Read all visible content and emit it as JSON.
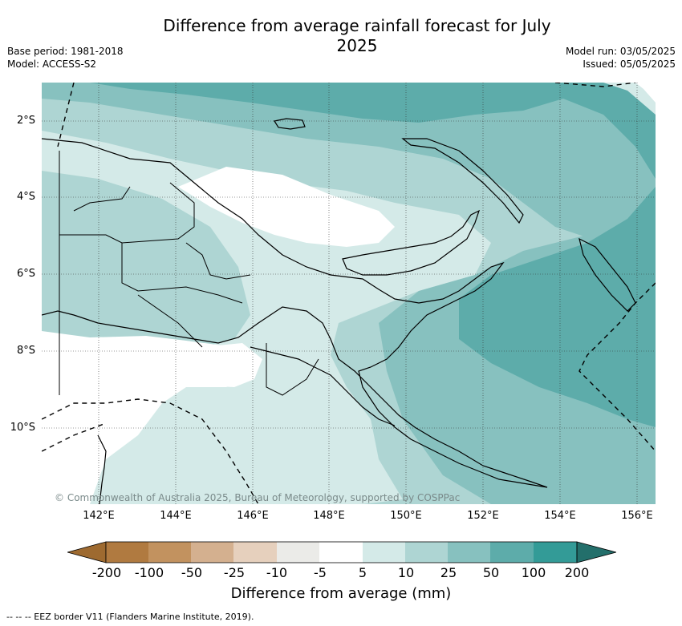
{
  "title": "Difference from average rainfall forecast for July 2025",
  "meta_left": [
    "Base period: 1981-2018",
    "Model: ACCESS-S2"
  ],
  "meta_right": [
    "Model run: 03/05/2025",
    "Issued: 05/05/2025"
  ],
  "map": {
    "lon_labels": [
      "142°E",
      "144°E",
      "146°E",
      "148°E",
      "150°E",
      "152°E",
      "154°E",
      "156°E"
    ],
    "lat_labels": [
      "2°S",
      "4°S",
      "6°S",
      "8°S",
      "10°S"
    ],
    "copyright": "© Commonwealth of Australia 2025, Bureau of Meteorology, supported by COSPPac",
    "colors": {
      "c5": "#d4eae8",
      "c10": "#aed5d3",
      "c25": "#87c1bf",
      "c50": "#5dacaa",
      "c100": "#339b97",
      "c200": "#236f6b"
    }
  },
  "colorbar": {
    "title": "Difference from average (mm)",
    "ticks": [
      "-200",
      "-100",
      "-50",
      "-25",
      "-10",
      "-5",
      "5",
      "10",
      "25",
      "50",
      "100",
      "200"
    ],
    "colors": [
      "#9e6a30",
      "#b07a40",
      "#c2925f",
      "#d4b08f",
      "#e6d0bd",
      "#ebebe8",
      "#ffffff",
      "#d4eae8",
      "#aed5d3",
      "#87c1bf",
      "#5dacaa",
      "#339b97",
      "#236f6b"
    ]
  },
  "footnote": "-- -- -- EEZ border V11 (Flanders Marine Institute, 2019)."
}
